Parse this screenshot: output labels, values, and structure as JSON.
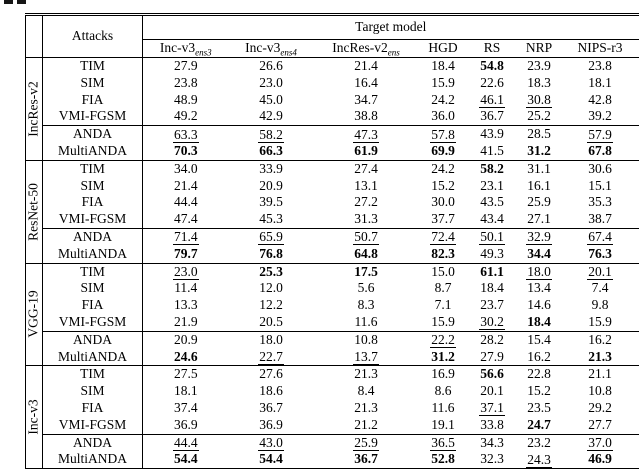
{
  "colors": {
    "background": "#ffffff",
    "text": "#000000",
    "rule": "#000000"
  },
  "table": {
    "attacks_header": "Attacks",
    "target_model_header": "Target model",
    "columns": [
      {
        "name": "Inc-v3",
        "sub": "ens3"
      },
      {
        "name": "Inc-v3",
        "sub": "ens4"
      },
      {
        "name": "IncRes-v2",
        "sub": "ens"
      },
      {
        "name": "HGD",
        "sub": ""
      },
      {
        "name": "RS",
        "sub": ""
      },
      {
        "name": "NRP",
        "sub": ""
      },
      {
        "name": "NIPS-r3",
        "sub": ""
      }
    ],
    "groups": [
      {
        "model": "IncRes-v2",
        "rows": [
          {
            "attack": "TIM",
            "cells": [
              {
                "v": "27.9"
              },
              {
                "v": "26.6"
              },
              {
                "v": "21.4"
              },
              {
                "v": "18.4"
              },
              {
                "v": "54.8",
                "s": "b"
              },
              {
                "v": "23.9"
              },
              {
                "v": "23.8"
              }
            ]
          },
          {
            "attack": "SIM",
            "cells": [
              {
                "v": "23.8"
              },
              {
                "v": "23.0"
              },
              {
                "v": "16.4"
              },
              {
                "v": "15.9"
              },
              {
                "v": "22.6"
              },
              {
                "v": "18.3"
              },
              {
                "v": "18.1"
              }
            ]
          },
          {
            "attack": "FIA",
            "cells": [
              {
                "v": "48.9"
              },
              {
                "v": "45.0"
              },
              {
                "v": "34.7"
              },
              {
                "v": "24.2"
              },
              {
                "v": "46.1",
                "s": "u"
              },
              {
                "v": "30.8",
                "s": "u"
              },
              {
                "v": "42.8"
              }
            ]
          },
          {
            "attack": "VMI-FGSM",
            "cells": [
              {
                "v": "49.2"
              },
              {
                "v": "42.9"
              },
              {
                "v": "38.8"
              },
              {
                "v": "36.0"
              },
              {
                "v": "36.7"
              },
              {
                "v": "25.2"
              },
              {
                "v": "39.2"
              }
            ]
          },
          {
            "attack": "ANDA",
            "cells": [
              {
                "v": "63.3",
                "s": "u"
              },
              {
                "v": "58.2",
                "s": "u"
              },
              {
                "v": "47.3",
                "s": "u"
              },
              {
                "v": "57.8",
                "s": "u"
              },
              {
                "v": "43.9"
              },
              {
                "v": "28.5"
              },
              {
                "v": "57.9",
                "s": "u"
              }
            ]
          },
          {
            "attack": "MultiANDA",
            "cells": [
              {
                "v": "70.3",
                "s": "b"
              },
              {
                "v": "66.3",
                "s": "b"
              },
              {
                "v": "61.9",
                "s": "b"
              },
              {
                "v": "69.9",
                "s": "b"
              },
              {
                "v": "41.5"
              },
              {
                "v": "31.2",
                "s": "b"
              },
              {
                "v": "67.8",
                "s": "b"
              }
            ]
          }
        ]
      },
      {
        "model": "ResNet-50",
        "rows": [
          {
            "attack": "TIM",
            "cells": [
              {
                "v": "34.0"
              },
              {
                "v": "33.9"
              },
              {
                "v": "27.4"
              },
              {
                "v": "24.2"
              },
              {
                "v": "58.2",
                "s": "b"
              },
              {
                "v": "31.1"
              },
              {
                "v": "30.6"
              }
            ]
          },
          {
            "attack": "SIM",
            "cells": [
              {
                "v": "21.4"
              },
              {
                "v": "20.9"
              },
              {
                "v": "13.1"
              },
              {
                "v": "15.2"
              },
              {
                "v": "23.1"
              },
              {
                "v": "16.1"
              },
              {
                "v": "15.1"
              }
            ]
          },
          {
            "attack": "FIA",
            "cells": [
              {
                "v": "44.4"
              },
              {
                "v": "39.5"
              },
              {
                "v": "27.2"
              },
              {
                "v": "30.0"
              },
              {
                "v": "43.5"
              },
              {
                "v": "25.9"
              },
              {
                "v": "35.3"
              }
            ]
          },
          {
            "attack": "VMI-FGSM",
            "cells": [
              {
                "v": "47.4"
              },
              {
                "v": "45.3"
              },
              {
                "v": "31.3"
              },
              {
                "v": "37.7"
              },
              {
                "v": "43.4"
              },
              {
                "v": "27.1"
              },
              {
                "v": "38.7"
              }
            ]
          },
          {
            "attack": "ANDA",
            "cells": [
              {
                "v": "71.4",
                "s": "u"
              },
              {
                "v": "65.9",
                "s": "u"
              },
              {
                "v": "50.7",
                "s": "u"
              },
              {
                "v": "72.4",
                "s": "u"
              },
              {
                "v": "50.1",
                "s": "u"
              },
              {
                "v": "32.9",
                "s": "u"
              },
              {
                "v": "67.4",
                "s": "u"
              }
            ]
          },
          {
            "attack": "MultiANDA",
            "cells": [
              {
                "v": "79.7",
                "s": "b"
              },
              {
                "v": "76.8",
                "s": "b"
              },
              {
                "v": "64.8",
                "s": "b"
              },
              {
                "v": "82.3",
                "s": "b"
              },
              {
                "v": "49.3"
              },
              {
                "v": "34.4",
                "s": "b"
              },
              {
                "v": "76.3",
                "s": "b"
              }
            ]
          }
        ]
      },
      {
        "model": "VGG-19",
        "rows": [
          {
            "attack": "TIM",
            "cells": [
              {
                "v": "23.0",
                "s": "u"
              },
              {
                "v": "25.3",
                "s": "b"
              },
              {
                "v": "17.5",
                "s": "b"
              },
              {
                "v": "15.0"
              },
              {
                "v": "61.1",
                "s": "b"
              },
              {
                "v": "18.0",
                "s": "u"
              },
              {
                "v": "20.1",
                "s": "u"
              }
            ]
          },
          {
            "attack": "SIM",
            "cells": [
              {
                "v": "11.4"
              },
              {
                "v": "12.0"
              },
              {
                "v": "5.6"
              },
              {
                "v": "8.7"
              },
              {
                "v": "18.4"
              },
              {
                "v": "13.4"
              },
              {
                "v": "7.4"
              }
            ]
          },
          {
            "attack": "FIA",
            "cells": [
              {
                "v": "13.3"
              },
              {
                "v": "12.2"
              },
              {
                "v": "8.3"
              },
              {
                "v": "7.1"
              },
              {
                "v": "23.7"
              },
              {
                "v": "14.6"
              },
              {
                "v": "9.8"
              }
            ]
          },
          {
            "attack": "VMI-FGSM",
            "cells": [
              {
                "v": "21.9"
              },
              {
                "v": "20.5"
              },
              {
                "v": "11.6"
              },
              {
                "v": "15.9"
              },
              {
                "v": "30.2",
                "s": "u"
              },
              {
                "v": "18.4",
                "s": "b"
              },
              {
                "v": "15.9"
              }
            ]
          },
          {
            "attack": "ANDA",
            "cells": [
              {
                "v": "20.9"
              },
              {
                "v": "18.0"
              },
              {
                "v": "10.8"
              },
              {
                "v": "22.2",
                "s": "u"
              },
              {
                "v": "28.2"
              },
              {
                "v": "15.4"
              },
              {
                "v": "16.2"
              }
            ]
          },
          {
            "attack": "MultiANDA",
            "cells": [
              {
                "v": "24.6",
                "s": "b"
              },
              {
                "v": "22.7",
                "s": "u"
              },
              {
                "v": "13.7",
                "s": "u"
              },
              {
                "v": "31.2",
                "s": "b"
              },
              {
                "v": "27.9"
              },
              {
                "v": "16.2"
              },
              {
                "v": "21.3",
                "s": "b"
              }
            ]
          }
        ]
      },
      {
        "model": "Inc-v3",
        "rows": [
          {
            "attack": "TIM",
            "cells": [
              {
                "v": "27.5"
              },
              {
                "v": "27.6"
              },
              {
                "v": "21.3"
              },
              {
                "v": "16.9"
              },
              {
                "v": "56.6",
                "s": "b"
              },
              {
                "v": "22.8"
              },
              {
                "v": "21.1"
              }
            ]
          },
          {
            "attack": "SIM",
            "cells": [
              {
                "v": "18.1"
              },
              {
                "v": "18.6"
              },
              {
                "v": "8.4"
              },
              {
                "v": "8.6"
              },
              {
                "v": "20.1"
              },
              {
                "v": "15.2"
              },
              {
                "v": "10.8"
              }
            ]
          },
          {
            "attack": "FIA",
            "cells": [
              {
                "v": "37.4"
              },
              {
                "v": "36.7"
              },
              {
                "v": "21.3"
              },
              {
                "v": "11.6"
              },
              {
                "v": "37.1",
                "s": "u"
              },
              {
                "v": "23.5"
              },
              {
                "v": "29.2"
              }
            ]
          },
          {
            "attack": "VMI-FGSM",
            "cells": [
              {
                "v": "36.9"
              },
              {
                "v": "36.9"
              },
              {
                "v": "21.2"
              },
              {
                "v": "19.1"
              },
              {
                "v": "33.8"
              },
              {
                "v": "24.7",
                "s": "b"
              },
              {
                "v": "27.7"
              }
            ]
          },
          {
            "attack": "ANDA",
            "cells": [
              {
                "v": "44.4",
                "s": "u"
              },
              {
                "v": "43.0",
                "s": "u"
              },
              {
                "v": "25.9",
                "s": "u"
              },
              {
                "v": "36.5",
                "s": "u"
              },
              {
                "v": "34.3"
              },
              {
                "v": "23.2"
              },
              {
                "v": "37.0",
                "s": "u"
              }
            ]
          },
          {
            "attack": "MultiANDA",
            "cells": [
              {
                "v": "54.4",
                "s": "b"
              },
              {
                "v": "54.4",
                "s": "b"
              },
              {
                "v": "36.7",
                "s": "b"
              },
              {
                "v": "52.8",
                "s": "b"
              },
              {
                "v": "32.3"
              },
              {
                "v": "24.3",
                "s": "u"
              },
              {
                "v": "46.9",
                "s": "b"
              }
            ]
          }
        ]
      }
    ]
  }
}
